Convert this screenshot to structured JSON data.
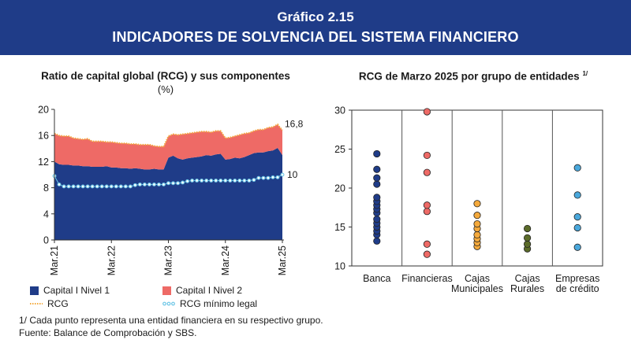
{
  "header": {
    "number": "Gráfico 2.15",
    "title": "INDICADORES DE SOLVENCIA DEL SISTEMA FINANCIERO"
  },
  "colors": {
    "banner": "#1f3c88",
    "capital_nivel1": "#1f3c88",
    "capital_nivel2": "#ee6a66",
    "rcg": "#f4a93c",
    "rcg_minimo": "#6cc6e6"
  },
  "chart_data": [
    {
      "type": "area",
      "title": "Ratio de capital global (RCG) y sus componentes",
      "subtitle": "(%)",
      "ylim": [
        0,
        20
      ],
      "yticks": [
        0,
        4,
        8,
        12,
        16,
        20
      ],
      "xtick_labels": [
        "Mar.21",
        "Mar.22",
        "Mar.23",
        "Mar.24",
        "Mar.25"
      ],
      "xtick_index": [
        0,
        12,
        24,
        36,
        48
      ],
      "series": [
        {
          "name": "Capital I Nivel 1",
          "stack": true,
          "values": [
            12.0,
            11.6,
            11.5,
            11.5,
            11.4,
            11.4,
            11.3,
            11.3,
            11.2,
            11.2,
            11.2,
            11.3,
            11.1,
            11.1,
            11.0,
            11.0,
            10.9,
            11.0,
            10.9,
            10.8,
            10.8,
            10.9,
            10.8,
            10.8,
            12.6,
            12.9,
            12.5,
            12.3,
            12.5,
            12.6,
            12.7,
            12.8,
            13.0,
            12.9,
            13.1,
            13.2,
            12.3,
            12.4,
            12.6,
            12.5,
            12.7,
            13.0,
            13.3,
            13.4,
            13.4,
            13.6,
            13.7,
            14.1,
            13.0
          ]
        },
        {
          "name": "Capital I Nivel 2",
          "stack": true,
          "values": [
            4.3,
            4.4,
            4.4,
            4.4,
            4.2,
            4.1,
            4.1,
            4.2,
            3.9,
            3.9,
            3.9,
            3.7,
            3.9,
            3.8,
            3.8,
            3.8,
            3.8,
            3.7,
            3.7,
            3.8,
            3.8,
            3.5,
            3.5,
            3.5,
            3.3,
            3.3,
            3.6,
            3.9,
            3.8,
            3.8,
            3.8,
            3.8,
            3.6,
            3.6,
            3.6,
            3.5,
            3.3,
            3.3,
            3.3,
            3.6,
            3.6,
            3.4,
            3.4,
            3.5,
            3.5,
            3.6,
            3.6,
            3.6,
            3.8
          ]
        },
        {
          "name": "RCG",
          "stack": false,
          "values": [
            16.3,
            16.0,
            15.9,
            15.9,
            15.6,
            15.5,
            15.4,
            15.5,
            15.1,
            15.1,
            15.1,
            15.0,
            15.0,
            14.9,
            14.8,
            14.8,
            14.7,
            14.7,
            14.6,
            14.6,
            14.6,
            14.4,
            14.3,
            14.3,
            15.9,
            16.2,
            16.1,
            16.2,
            16.3,
            16.4,
            16.5,
            16.6,
            16.6,
            16.5,
            16.7,
            16.7,
            15.6,
            15.7,
            15.9,
            16.1,
            16.3,
            16.4,
            16.7,
            16.9,
            16.9,
            17.2,
            17.3,
            17.7,
            16.8
          ]
        },
        {
          "name": "RCG mínimo legal",
          "stack": false,
          "values": [
            9.8,
            8.5,
            8.2,
            8.2,
            8.2,
            8.2,
            8.2,
            8.2,
            8.2,
            8.2,
            8.2,
            8.2,
            8.2,
            8.2,
            8.2,
            8.2,
            8.2,
            8.4,
            8.5,
            8.5,
            8.5,
            8.5,
            8.5,
            8.5,
            8.7,
            8.7,
            8.7,
            8.8,
            9.0,
            9.1,
            9.1,
            9.1,
            9.1,
            9.1,
            9.1,
            9.1,
            9.1,
            9.1,
            9.1,
            9.1,
            9.1,
            9.1,
            9.2,
            9.5,
            9.5,
            9.5,
            9.6,
            9.6,
            10.0
          ]
        }
      ],
      "labels": {
        "rcg_last": "16,8",
        "min_last": "10"
      },
      "legend": [
        {
          "name": "Capital I Nivel 1",
          "kind": "square"
        },
        {
          "name": "Capital I Nivel 2",
          "kind": "square"
        },
        {
          "name": "RCG",
          "kind": "dotted-line"
        },
        {
          "name": "RCG mínimo legal",
          "kind": "circle-line"
        }
      ],
      "legend_position": "bottom",
      "grid": false
    },
    {
      "type": "scatter",
      "title": "RCG de Marzo 2025 por grupo de entidades",
      "title_note": "1/",
      "ylim": [
        10,
        30
      ],
      "yticks": [
        10,
        15,
        20,
        25,
        30
      ],
      "categories": [
        "Banca",
        "Financieras",
        "Cajas Municipales",
        "Cajas Rurales",
        "Empresas de crédito"
      ],
      "category_lines": [
        [
          "Banca"
        ],
        [
          "Financieras"
        ],
        [
          "Cajas",
          "Municipales"
        ],
        [
          "Cajas",
          "Rurales"
        ],
        [
          "Empresas",
          "de crédito"
        ]
      ],
      "category_colors": [
        "#1f3c88",
        "#ee6a66",
        "#f4a93c",
        "#5b6b2a",
        "#4aa8dc"
      ],
      "points": [
        [
          13.2,
          14.0,
          14.5,
          15.0,
          15.5,
          16.0,
          16.8,
          17.3,
          17.8,
          18.3,
          18.8,
          20.5,
          21.3,
          22.4,
          24.4
        ],
        [
          11.5,
          12.8,
          17.0,
          17.8,
          22.0,
          24.2,
          29.8
        ],
        [
          12.5,
          13.0,
          13.5,
          14.0,
          14.8,
          15.4,
          16.5,
          18.0
        ],
        [
          12.2,
          12.8,
          13.6,
          14.8
        ],
        [
          12.4,
          14.9,
          16.3,
          19.1,
          22.6
        ]
      ],
      "grid": false
    }
  ],
  "footnotes": {
    "note": "1/ Cada punto representa una entidad financiera en su respectivo grupo.",
    "source": "Fuente: Balance de Comprobación y SBS."
  }
}
